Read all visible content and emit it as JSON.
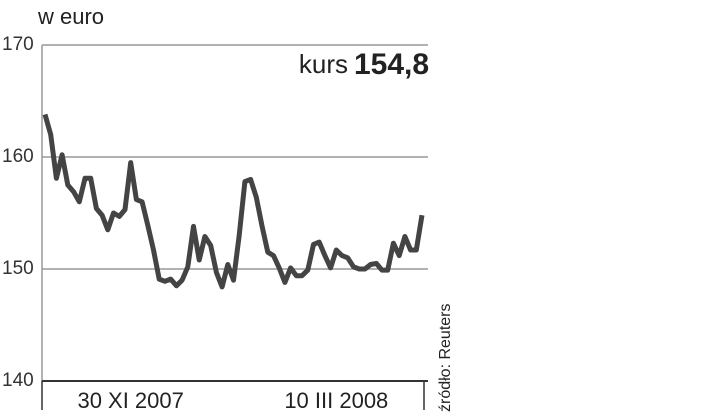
{
  "chart_data": {
    "type": "line",
    "title": "w euro",
    "annotation": "kurs",
    "annotation_value": {
      "value": 154.8,
      "label": "154,8"
    },
    "source": "źródło: Reuters",
    "categories": [
      null,
      null,
      null,
      null,
      null,
      null,
      null,
      null,
      null,
      null,
      null,
      null,
      null,
      null,
      null,
      "30 XI 2007",
      null,
      null,
      null,
      null,
      null,
      null,
      null,
      null,
      null,
      null,
      null,
      null,
      null,
      null,
      null,
      null,
      null,
      null,
      null,
      null,
      null,
      null,
      null,
      null,
      null,
      null,
      null,
      null,
      null,
      null,
      null,
      null,
      null,
      null,
      null,
      "10 III 2008",
      null,
      null,
      null,
      null,
      null,
      null,
      null,
      null,
      null,
      null,
      null,
      null,
      null,
      null,
      null
    ],
    "values": [
      163.8,
      162.0,
      158.1,
      160.2,
      157.5,
      156.9,
      156.0,
      158.1,
      158.1,
      155.4,
      154.8,
      153.5,
      155.0,
      154.7,
      155.3,
      159.5,
      156.2,
      156.0,
      153.9,
      151.7,
      149.1,
      148.9,
      149.1,
      148.5,
      149.0,
      150.2,
      153.8,
      150.8,
      152.9,
      152.1,
      149.7,
      148.4,
      150.4,
      149.0,
      153.0,
      157.8,
      158.0,
      156.4,
      153.8,
      151.5,
      151.2,
      150.1,
      148.8,
      150.1,
      149.4,
      149.4,
      149.9,
      152.2,
      152.4,
      151.2,
      150.1,
      151.7,
      151.2,
      151.0,
      150.2,
      150.0,
      150.0,
      150.4,
      150.5,
      149.9,
      149.9,
      152.3,
      151.2,
      152.9,
      151.7,
      151.7,
      154.8
    ],
    "color": "#444444",
    "ylim": [
      140,
      170
    ],
    "yticks": [
      140,
      150,
      160,
      170
    ],
    "grid": true
  }
}
